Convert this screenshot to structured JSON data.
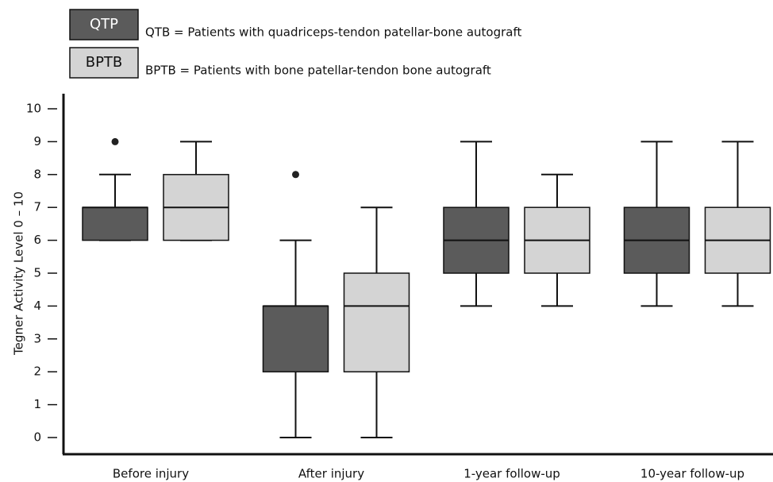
{
  "chart_data": {
    "type": "box",
    "y_label": "Tegner Activity Level  0 – 10",
    "categories": [
      "Before injury",
      "After injury",
      "1-year follow-up",
      "10-year follow-up"
    ],
    "ylim": [
      0,
      10
    ],
    "yticks": [
      0,
      1,
      2,
      3,
      4,
      5,
      6,
      7,
      8,
      9,
      10
    ],
    "series": [
      {
        "name": "QTP",
        "color": "#5b5b5b",
        "description": "QTB = Patients with quadriceps-tendon patellar-bone autograft",
        "boxes": [
          {
            "min": 6,
            "q1": 6,
            "median": 7,
            "q3": 7,
            "max": 8,
            "outliers": [
              9
            ]
          },
          {
            "min": 0,
            "q1": 2,
            "median": 4,
            "q3": 4,
            "max": 6,
            "outliers": [
              8
            ]
          },
          {
            "min": 4,
            "q1": 5,
            "median": 6,
            "q3": 7,
            "max": 9,
            "outliers": []
          },
          {
            "min": 4,
            "q1": 5,
            "median": 6,
            "q3": 7,
            "max": 9,
            "outliers": []
          }
        ]
      },
      {
        "name": "BPTB",
        "color": "#d4d4d4",
        "description": "BPTB = Patients with bone patellar-tendon bone autograft",
        "boxes": [
          {
            "min": 6,
            "q1": 6,
            "median": 7,
            "q3": 8,
            "max": 9,
            "outliers": []
          },
          {
            "min": 0,
            "q1": 2,
            "median": 4,
            "q3": 5,
            "max": 7,
            "outliers": []
          },
          {
            "min": 4,
            "q1": 5,
            "median": 6,
            "q3": 7,
            "max": 8,
            "outliers": []
          },
          {
            "min": 4,
            "q1": 5,
            "median": 6,
            "q3": 7,
            "max": 9,
            "outliers": []
          }
        ]
      }
    ]
  }
}
